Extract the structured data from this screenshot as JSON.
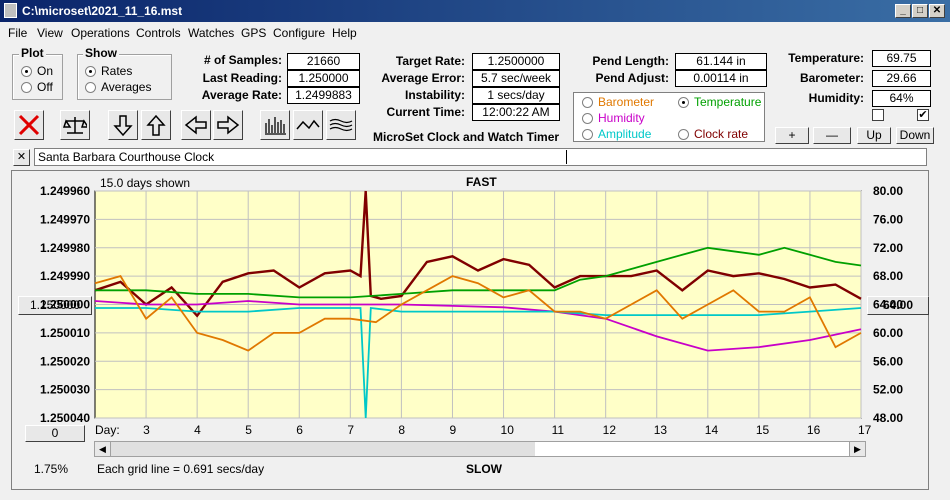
{
  "window": {
    "title": "C:\\microset\\2021_11_16.mst"
  },
  "menu": [
    "File",
    "View",
    "Operations",
    "Controls",
    "Watches",
    "GPS",
    "Configure",
    "Help"
  ],
  "plot_group": {
    "title": "Plot",
    "on": "On",
    "off": "Off",
    "selected": "On"
  },
  "show_group": {
    "title": "Show",
    "rates": "Rates",
    "averages": "Averages",
    "selected": "Rates"
  },
  "stats": {
    "samples_label": "# of Samples:",
    "samples": "21660",
    "last_label": "Last Reading:",
    "last": "1.250000",
    "avg_label": "Average Rate:",
    "avg": "1.2499883"
  },
  "rates": {
    "target_label": "Target Rate:",
    "target": "1.2500000",
    "error_label": "Average Error:",
    "error": "5.7 sec/week",
    "instab_label": "Instability:",
    "instab": "1 secs/day",
    "time_label": "Current Time:",
    "time": "12:00:22 AM"
  },
  "app_name": "MicroSet Clock and Watch Timer",
  "pendulum": {
    "length_label": "Pend Length:",
    "length": "61.144 in",
    "adjust_label": "Pend Adjust:",
    "adjust": "0.00114 in"
  },
  "sensors_options": [
    {
      "label": "Barometer",
      "color": "#e07800",
      "selected": false
    },
    {
      "label": "Temperature",
      "color": "#00a000",
      "selected": true
    },
    {
      "label": "Humidity",
      "color": "#c800c8",
      "selected": false
    },
    {
      "label": "Amplitude",
      "color": "#00c8c8",
      "selected": false
    },
    {
      "label": "Clock rate",
      "color": "#800000",
      "selected": false
    }
  ],
  "env": {
    "temp_label": "Temperature:",
    "temp": "69.75",
    "baro_label": "Barometer:",
    "baro": "29.66",
    "hum_label": "Humidity:",
    "hum": "64%"
  },
  "adj_buttons": {
    "plus": "+",
    "minus": "—",
    "up": "Up",
    "down": "Down"
  },
  "clock_name": "Santa Barbara Courthouse Clock",
  "close_x": "✕",
  "plot": {
    "days_shown": "15.0 days shown",
    "top_label": "FAST",
    "bottom_label": "SLOW",
    "center_button": "1.250000",
    "right_button": "64.00",
    "zero_button": "0",
    "percent": "1.75%",
    "grid_note": "Each grid line = 0.691 secs/day",
    "day_label": "Day:"
  },
  "icons": [
    "stop-x-icon",
    "balance-scale-icon",
    "arrow-down-icon",
    "arrow-up-icon",
    "arrow-left-icon",
    "arrow-right-icon",
    "bar-chart-icon",
    "wave-icon",
    "multi-wave-icon"
  ],
  "colors": {
    "plot_bg": "#ffffc8",
    "title_bar": "#0a246a"
  },
  "chart_data": {
    "type": "line",
    "x_label": "Day:",
    "xlim": [
      2,
      17
    ],
    "x_ticks": [
      3,
      4,
      5,
      6,
      7,
      8,
      9,
      10,
      11,
      12,
      13,
      14,
      15,
      16,
      17
    ],
    "y_left_ticks": [
      "1.249960",
      "1.249970",
      "1.249980",
      "1.249990",
      "1.250000",
      "1.250010",
      "1.250020",
      "1.250030",
      "1.250040"
    ],
    "y_left_lim": [
      1.24996,
      1.25004
    ],
    "y_right_ticks": [
      "80.00",
      "76.00",
      "72.00",
      "68.00",
      "64.00",
      "60.00",
      "56.00",
      "52.00",
      "48.00"
    ],
    "y_right_lim": [
      48,
      80
    ],
    "series": [
      {
        "name": "Clock rate",
        "color": "#800000",
        "axis": "left",
        "x": [
          2,
          2.5,
          3,
          3.5,
          4,
          4.5,
          5,
          5.5,
          6,
          6.5,
          7,
          7.2,
          7.3,
          7.4,
          7.6,
          8,
          8.5,
          9,
          9.5,
          10,
          10.5,
          11,
          11.5,
          12,
          12.5,
          13,
          13.5,
          14,
          14.5,
          15,
          15.5,
          16,
          16.5,
          17
        ],
        "y": [
          1.249995,
          1.249992,
          1.25,
          1.249994,
          1.250004,
          1.249992,
          1.249989,
          1.249988,
          1.249994,
          1.249989,
          1.249988,
          1.24999,
          1.24996,
          1.249997,
          1.249998,
          1.249997,
          1.249985,
          1.249983,
          1.249988,
          1.249984,
          1.249986,
          1.249994,
          1.24999,
          1.24999,
          1.24999,
          1.249988,
          1.249995,
          1.249988,
          1.24999,
          1.249989,
          1.249991,
          1.249994,
          1.249993,
          1.249998
        ]
      },
      {
        "name": "Temperature",
        "color": "#00a000",
        "axis": "right",
        "x": [
          2,
          3,
          4,
          5,
          6,
          7,
          8,
          9,
          10,
          11,
          11.5,
          12,
          12.5,
          13,
          13.5,
          14,
          14.5,
          15,
          15.5,
          16,
          16.5,
          17
        ],
        "y": [
          66,
          66,
          65.5,
          65.5,
          65,
          65,
          65.5,
          66,
          66,
          66,
          67.5,
          68,
          69,
          70,
          71,
          72,
          71.5,
          71,
          72,
          71,
          70,
          69.5
        ]
      },
      {
        "name": "Humidity",
        "color": "#c800c8",
        "axis": "right",
        "x": [
          2,
          3,
          4,
          5,
          6,
          7,
          8,
          9,
          10,
          11,
          12,
          13,
          14,
          15,
          16,
          17
        ],
        "y": [
          64.5,
          64,
          64,
          64.5,
          64,
          64,
          64,
          63.8,
          63.6,
          63,
          62,
          59.5,
          57.5,
          58,
          59,
          60.5
        ]
      },
      {
        "name": "Amplitude",
        "color": "#00c8c8",
        "axis": "right",
        "x": [
          2,
          3,
          4,
          5,
          6,
          7,
          7.2,
          7.3,
          7.4,
          8,
          9,
          10,
          11,
          12,
          13,
          14,
          15,
          16,
          17
        ],
        "y": [
          63.5,
          63.5,
          63,
          63,
          63.5,
          63.5,
          63.5,
          48,
          63.5,
          63,
          63,
          63,
          63,
          62.5,
          62.5,
          62.5,
          62.5,
          63,
          63.5
        ]
      },
      {
        "name": "Barometer",
        "color": "#e07800",
        "axis": "right",
        "x": [
          2,
          2.5,
          3,
          3.5,
          4,
          4.5,
          5,
          5.5,
          6,
          6.5,
          7,
          7.5,
          8,
          8.5,
          9,
          9.5,
          10,
          10.5,
          11,
          11.5,
          12,
          12.5,
          13,
          13.5,
          14,
          14.5,
          15,
          15.5,
          16,
          16.5,
          17
        ],
        "y": [
          67,
          68,
          62,
          65,
          60,
          59,
          57.5,
          60,
          60,
          62,
          62,
          61.5,
          64,
          66,
          68,
          67,
          65,
          66,
          63,
          63,
          62,
          64,
          66,
          62,
          64,
          66,
          63,
          63,
          65,
          58,
          60
        ]
      }
    ]
  }
}
